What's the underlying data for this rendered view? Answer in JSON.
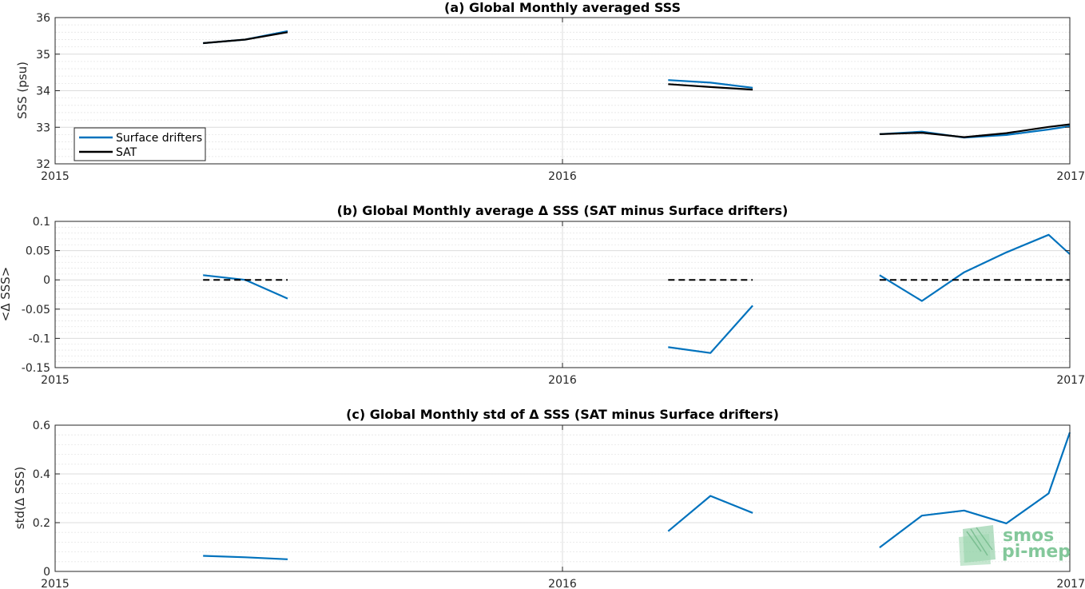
{
  "chart_data": [
    {
      "type": "line",
      "title": "(a) Global Monthly averaged SSS",
      "xlabel": "",
      "ylabel": "SSS (psu)",
      "xlim": [
        2015,
        2017
      ],
      "ylim": [
        32,
        36
      ],
      "xticks": [
        2015,
        2016,
        2017
      ],
      "xtick_labels": [
        "2015",
        "2016",
        "2017"
      ],
      "yticks": [
        32,
        33,
        34,
        35,
        36
      ],
      "ytick_labels": [
        "32",
        "33",
        "34",
        "35",
        "36"
      ],
      "grid": true,
      "legend": "bottom-left",
      "series": [
        {
          "name": "Surface drifters",
          "color": "#0072bd",
          "segments": [
            [
              [
                2015.2917,
                35.3
              ],
              [
                2015.375,
                35.4
              ],
              [
                2015.4583,
                35.63
              ]
            ],
            [
              [
                2016.2083,
                34.29
              ],
              [
                2016.2917,
                34.22
              ],
              [
                2016.375,
                34.08
              ]
            ],
            [
              [
                2016.625,
                32.81
              ],
              [
                2016.7083,
                32.88
              ],
              [
                2016.7917,
                32.72
              ],
              [
                2016.875,
                32.79
              ],
              [
                2016.9583,
                32.94
              ],
              [
                2017.0,
                33.03
              ]
            ]
          ]
        },
        {
          "name": "SAT",
          "color": "#000000",
          "segments": [
            [
              [
                2015.2917,
                35.3
              ],
              [
                2015.375,
                35.4
              ],
              [
                2015.4583,
                35.6
              ]
            ],
            [
              [
                2016.2083,
                34.18
              ],
              [
                2016.2917,
                34.1
              ],
              [
                2016.375,
                34.03
              ]
            ],
            [
              [
                2016.625,
                32.81
              ],
              [
                2016.7083,
                32.85
              ],
              [
                2016.7917,
                32.73
              ],
              [
                2016.875,
                32.84
              ],
              [
                2016.9583,
                33.01
              ],
              [
                2017.0,
                33.08
              ]
            ]
          ]
        }
      ]
    },
    {
      "type": "line",
      "title": "(b) Global Monthly average Δ SSS (SAT minus Surface drifters)",
      "xlabel": "",
      "ylabel": "<Δ SSS>",
      "xlim": [
        2015,
        2017
      ],
      "ylim": [
        -0.15,
        0.1
      ],
      "xticks": [
        2015,
        2016,
        2017
      ],
      "xtick_labels": [
        "2015",
        "2016",
        "2017"
      ],
      "yticks": [
        -0.15,
        -0.1,
        -0.05,
        0,
        0.05,
        0.1
      ],
      "ytick_labels": [
        "-0.15",
        "-0.1",
        "-0.05",
        "0",
        "0.05",
        "0.1"
      ],
      "grid": true,
      "series": [
        {
          "color": "#0072bd",
          "segments": [
            [
              [
                2015.2917,
                0.008
              ],
              [
                2015.375,
                0.0
              ],
              [
                2015.4583,
                -0.032
              ]
            ],
            [
              [
                2016.2083,
                -0.115
              ],
              [
                2016.2917,
                -0.125
              ],
              [
                2016.375,
                -0.044
              ]
            ],
            [
              [
                2016.625,
                0.008
              ],
              [
                2016.7083,
                -0.036
              ],
              [
                2016.7917,
                0.013
              ],
              [
                2016.875,
                0.047
              ],
              [
                2016.9583,
                0.077
              ],
              [
                2017.0,
                0.044
              ]
            ]
          ]
        },
        {
          "color": "#000000",
          "dashed": true,
          "segments": [
            [
              [
                2015.2917,
                0.0
              ],
              [
                2015.4583,
                0.0
              ]
            ],
            [
              [
                2016.2083,
                0.0
              ],
              [
                2016.375,
                0.0
              ]
            ],
            [
              [
                2016.625,
                0.0
              ],
              [
                2017.0,
                0.0
              ]
            ]
          ]
        }
      ]
    },
    {
      "type": "line",
      "title": "(c) Global Monthly std of Δ SSS (SAT minus Surface drifters)",
      "xlabel": "",
      "ylabel": "std(Δ SSS)",
      "xlim": [
        2015,
        2017
      ],
      "ylim": [
        0,
        0.6
      ],
      "xticks": [
        2015,
        2016,
        2017
      ],
      "xtick_labels": [
        "2015",
        "2016",
        "2017"
      ],
      "yticks": [
        0,
        0.2,
        0.4,
        0.6
      ],
      "ytick_labels": [
        "0",
        "0.2",
        "0.4",
        "0.6"
      ],
      "grid": true,
      "series": [
        {
          "color": "#0072bd",
          "segments": [
            [
              [
                2015.2917,
                0.064
              ],
              [
                2015.375,
                0.058
              ],
              [
                2015.4583,
                0.05
              ]
            ],
            [
              [
                2016.2083,
                0.165
              ],
              [
                2016.2917,
                0.31
              ],
              [
                2016.375,
                0.24
              ]
            ],
            [
              [
                2016.625,
                0.098
              ],
              [
                2016.7083,
                0.229
              ],
              [
                2016.7917,
                0.25
              ],
              [
                2016.875,
                0.197
              ],
              [
                2016.9583,
                0.32
              ],
              [
                2017.0,
                0.57
              ]
            ]
          ]
        }
      ]
    }
  ],
  "logo": {
    "line1": "smos",
    "line2": "pi-mep",
    "color": "#6fbf8a"
  }
}
